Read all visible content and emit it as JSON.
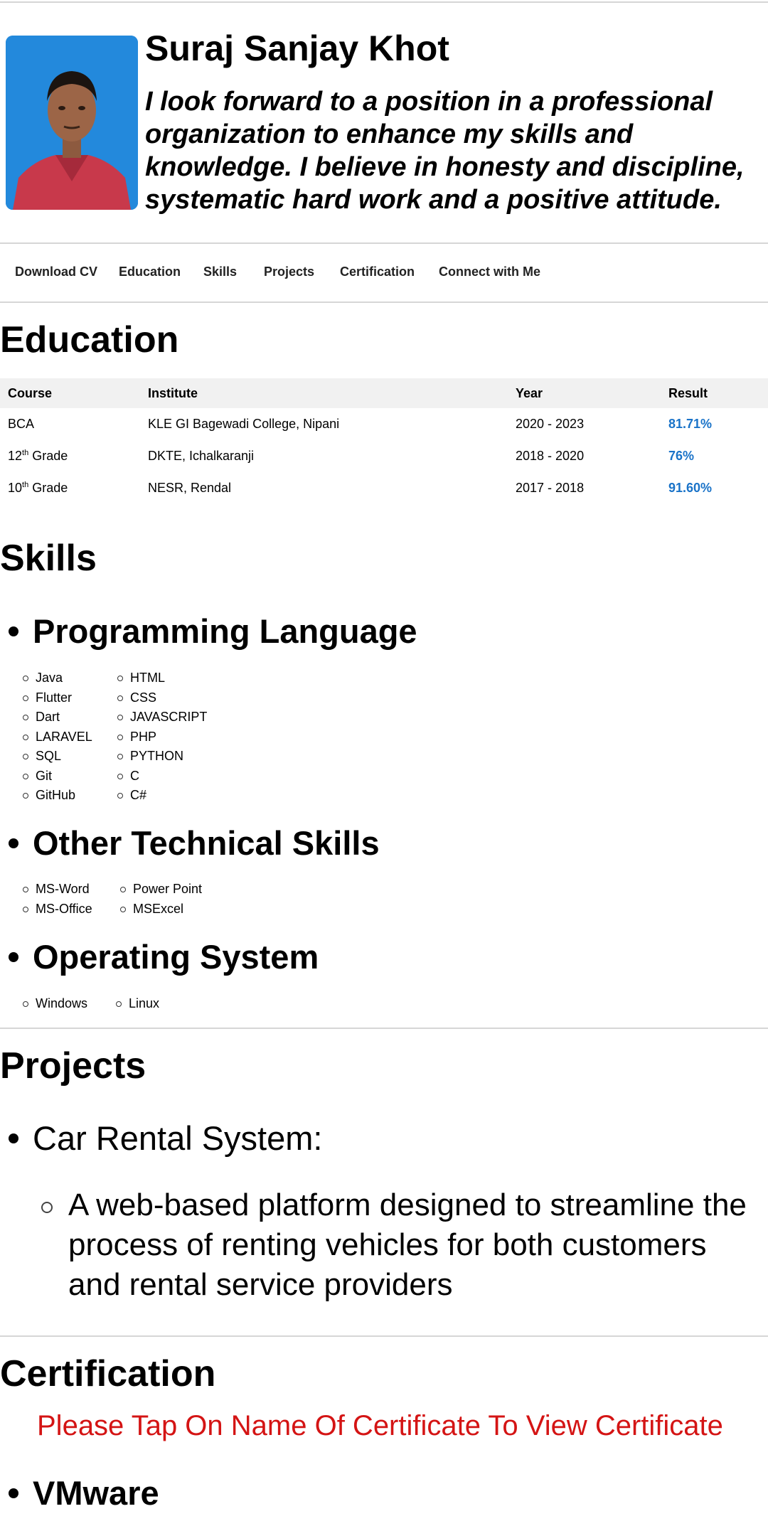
{
  "profile": {
    "name": "Suraj Sanjay Khot",
    "tagline": "I look forward to a position in a professional organization to enhance my skills and knowledge. I believe in honesty and discipline, systematic hard work and a positive attitude."
  },
  "nav": {
    "items": [
      "Download CV",
      "Education",
      "Skills",
      "Projects",
      "Certification",
      "Connect with Me"
    ]
  },
  "education": {
    "title": "Education",
    "headers": [
      "Course",
      "Institute",
      "Year",
      "Result"
    ],
    "rows": [
      {
        "course": "BCA",
        "sup": "",
        "course_suffix": "",
        "institute": "KLE GI Bagewadi College, Nipani",
        "year": "2020 - 2023",
        "result": "81.71%"
      },
      {
        "course": "12",
        "sup": "th",
        "course_suffix": " Grade",
        "institute": "DKTE, Ichalkaranji",
        "year": "2018 - 2020",
        "result": "76%"
      },
      {
        "course": "10",
        "sup": "th",
        "course_suffix": " Grade",
        "institute": "NESR, Rendal",
        "year": "2017 - 2018",
        "result": "91.60%"
      }
    ]
  },
  "skills": {
    "title": "Skills",
    "programming": {
      "label": "Programming Language",
      "col1": [
        "Java",
        "Flutter",
        "Dart",
        "LARAVEL",
        "SQL",
        "Git",
        "GitHub"
      ],
      "col2": [
        "HTML",
        "CSS",
        "JAVASCRIPT",
        "PHP",
        "PYTHON",
        "C",
        "C#"
      ]
    },
    "other": {
      "label": "Other Technical Skills",
      "col1": [
        "MS-Word",
        "MS-Office"
      ],
      "col2": [
        "Power Point",
        "MSExcel"
      ]
    },
    "os": {
      "label": "Operating System",
      "col1": [
        "Windows"
      ],
      "col2": [
        "Linux"
      ]
    }
  },
  "projects": {
    "title": "Projects",
    "items": [
      {
        "name": "Car Rental System:",
        "description": "A web-based platform designed to streamline the process of renting vehicles for both customers and rental service providers"
      }
    ]
  },
  "certification": {
    "title": "Certification",
    "note": "Please Tap On Name Of Certificate To View Certificate",
    "items": [
      "VMware"
    ]
  },
  "colors": {
    "result": "#1a73c8",
    "note": "#d41414"
  }
}
